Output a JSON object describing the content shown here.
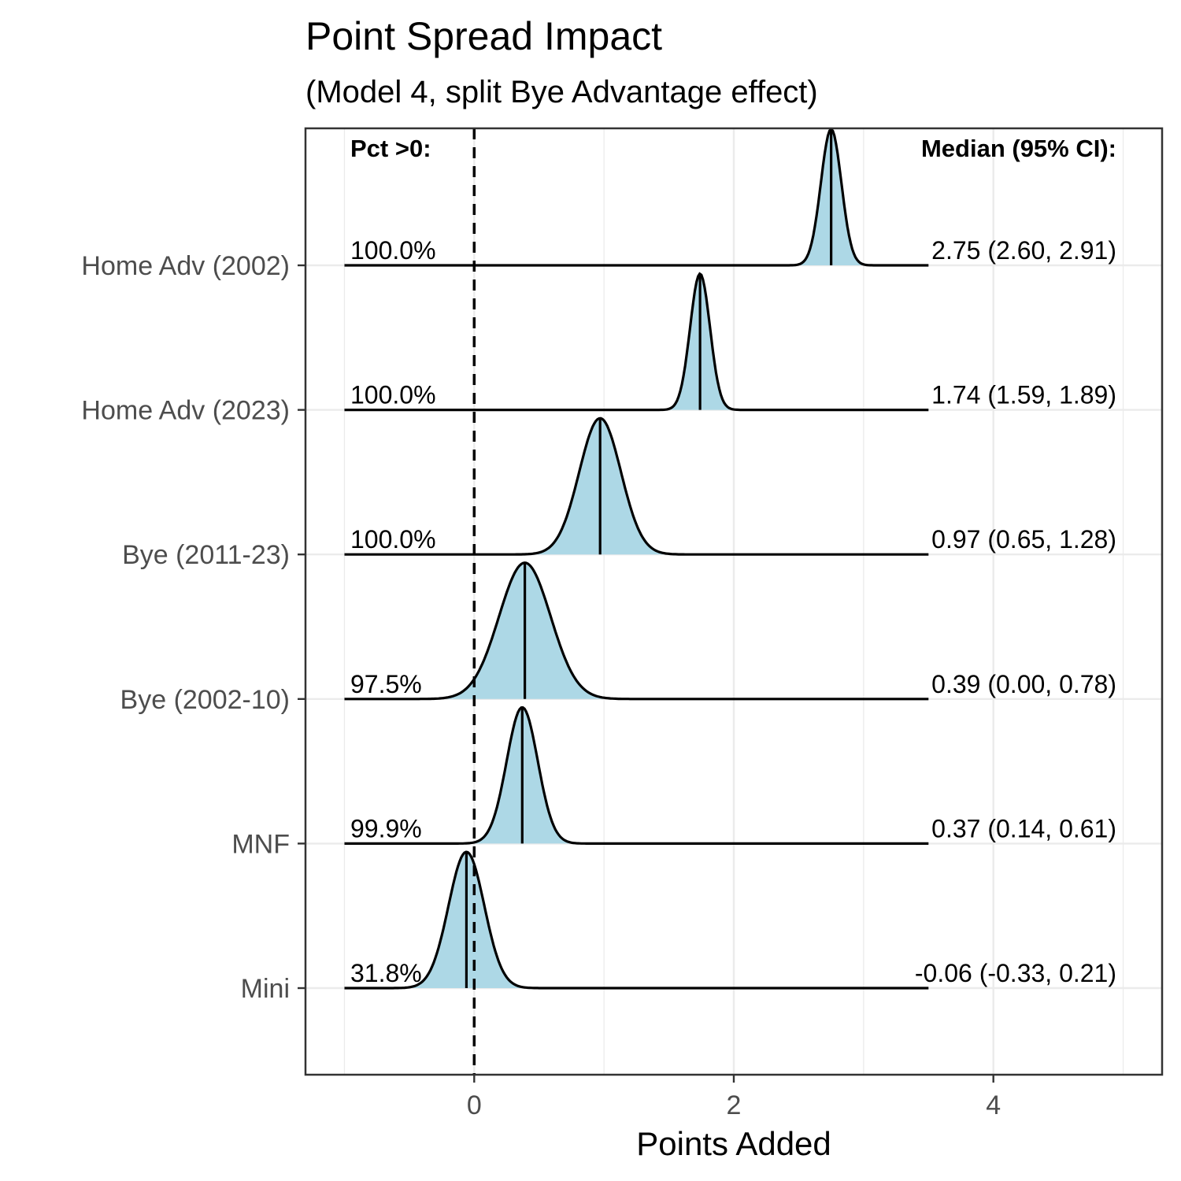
{
  "chart_data": {
    "type": "ridgeline",
    "title": "Point Spread Impact",
    "subtitle": "(Model 4, split Bye Advantage effect)",
    "xlabel": "Points Added",
    "ylabel": "",
    "xlim": [
      -1.3,
      5.3
    ],
    "x_ticks": [
      "0",
      "2",
      "4"
    ],
    "x_tick_values": [
      0,
      2,
      4
    ],
    "reference_line_x": 0,
    "grid": true,
    "left_header": "Pct >0:",
    "right_header": "Median (95% CI):",
    "fill_color": "#add8e6",
    "series": [
      {
        "name": "Home Adv (2002)",
        "median": 2.75,
        "ci_low": 2.6,
        "ci_high": 2.91,
        "pct_label": "100.0%",
        "ci_label": "2.75 (2.60, 2.91)"
      },
      {
        "name": "Home Adv (2023)",
        "median": 1.74,
        "ci_low": 1.59,
        "ci_high": 1.89,
        "pct_label": "100.0%",
        "ci_label": "1.74 (1.59, 1.89)"
      },
      {
        "name": "Bye (2011-23)",
        "median": 0.97,
        "ci_low": 0.65,
        "ci_high": 1.28,
        "pct_label": "100.0%",
        "ci_label": "0.97 (0.65, 1.28)"
      },
      {
        "name": "Bye (2002-10)",
        "median": 0.39,
        "ci_low": 0.0,
        "ci_high": 0.78,
        "pct_label": "97.5%",
        "ci_label": "0.39 (0.00, 0.78)"
      },
      {
        "name": "MNF",
        "median": 0.37,
        "ci_low": 0.14,
        "ci_high": 0.61,
        "pct_label": "99.9%",
        "ci_label": "0.37 (0.14, 0.61)"
      },
      {
        "name": "Mini",
        "median": -0.06,
        "ci_low": -0.33,
        "ci_high": 0.21,
        "pct_label": "31.8%",
        "ci_label": "-0.06 (-0.33, 0.21)"
      }
    ]
  }
}
